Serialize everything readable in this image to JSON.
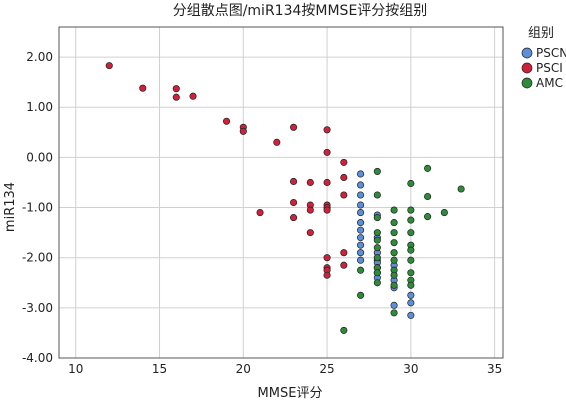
{
  "chart_data": {
    "type": "scatter",
    "title": "分组散点图/miR134按MMSE评分按组别",
    "xlabel": "MMSE评分",
    "ylabel": "miR134",
    "xlim": [
      9,
      35.5
    ],
    "ylim": [
      -4.0,
      2.6
    ],
    "x_ticks": [
      10,
      15,
      20,
      25,
      30,
      35
    ],
    "y_ticks": [
      -4.0,
      -3.0,
      -2.0,
      -1.0,
      0.0,
      1.0,
      2.0
    ],
    "y_tick_labels": [
      "-4.00",
      "-3.00",
      "-2.00",
      "-1.00",
      "0.00",
      "1.00",
      "2.00"
    ],
    "grid": true,
    "legend": {
      "title": "组别",
      "position": "right"
    },
    "series": [
      {
        "name": "PSCN",
        "color": "#5b8fd9",
        "points": [
          [
            27,
            -0.33
          ],
          [
            27,
            -0.55
          ],
          [
            27,
            -0.75
          ],
          [
            27,
            -0.95
          ],
          [
            27,
            -1.1
          ],
          [
            27,
            -1.3
          ],
          [
            27,
            -1.45
          ],
          [
            27,
            -1.6
          ],
          [
            27,
            -1.75
          ],
          [
            27,
            -1.9
          ],
          [
            27,
            -2.05
          ],
          [
            28,
            -1.15
          ],
          [
            28,
            -1.6
          ],
          [
            28,
            -1.9
          ],
          [
            28,
            -2.05
          ],
          [
            28,
            -2.1
          ],
          [
            28,
            -2.2
          ],
          [
            28,
            -2.3
          ],
          [
            28,
            -2.4
          ],
          [
            29,
            -2.15
          ],
          [
            29,
            -2.45
          ],
          [
            29,
            -2.6
          ],
          [
            29,
            -2.95
          ],
          [
            30,
            -2.75
          ],
          [
            30,
            -2.9
          ],
          [
            30,
            -3.15
          ]
        ]
      },
      {
        "name": "PSCI",
        "color": "#d0213c",
        "points": [
          [
            12,
            1.83
          ],
          [
            14,
            1.38
          ],
          [
            16,
            1.37
          ],
          [
            16,
            1.2
          ],
          [
            17,
            1.22
          ],
          [
            19,
            0.72
          ],
          [
            20,
            0.6
          ],
          [
            20,
            0.52
          ],
          [
            22,
            0.3
          ],
          [
            23,
            0.6
          ],
          [
            23,
            -0.48
          ],
          [
            23,
            -0.9
          ],
          [
            23,
            -1.2
          ],
          [
            24,
            -0.5
          ],
          [
            24,
            -0.95
          ],
          [
            24,
            -1.05
          ],
          [
            24,
            -1.5
          ],
          [
            21,
            -1.1
          ],
          [
            25,
            0.55
          ],
          [
            25,
            0.1
          ],
          [
            25,
            -0.5
          ],
          [
            25,
            -0.95
          ],
          [
            25,
            -1.0
          ],
          [
            25,
            -1.05
          ],
          [
            25,
            -2.0
          ],
          [
            25,
            -2.2
          ],
          [
            25,
            -2.25
          ],
          [
            25,
            -2.35
          ],
          [
            26,
            -0.1
          ],
          [
            26,
            -0.4
          ],
          [
            26,
            -0.75
          ],
          [
            26,
            -1.9
          ],
          [
            26,
            -2.15
          ]
        ]
      },
      {
        "name": "AMC",
        "color": "#2e8b3a",
        "points": [
          [
            26,
            -3.45
          ],
          [
            27,
            -2.75
          ],
          [
            27,
            -2.25
          ],
          [
            28,
            -0.28
          ],
          [
            28,
            -0.75
          ],
          [
            28,
            -1.2
          ],
          [
            28,
            -1.5
          ],
          [
            28,
            -1.65
          ],
          [
            28,
            -1.8
          ],
          [
            28,
            -2.0
          ],
          [
            28,
            -2.2
          ],
          [
            28,
            -2.3
          ],
          [
            28,
            -2.5
          ],
          [
            29,
            -1.05
          ],
          [
            29,
            -1.3
          ],
          [
            29,
            -1.5
          ],
          [
            29,
            -1.7
          ],
          [
            29,
            -1.9
          ],
          [
            29,
            -2.05
          ],
          [
            29,
            -2.25
          ],
          [
            29,
            -2.35
          ],
          [
            29,
            -2.55
          ],
          [
            29,
            -3.1
          ],
          [
            30,
            -0.52
          ],
          [
            30,
            -1.05
          ],
          [
            30,
            -1.25
          ],
          [
            30,
            -1.5
          ],
          [
            30,
            -1.75
          ],
          [
            30,
            -1.85
          ],
          [
            30,
            -2.05
          ],
          [
            30,
            -2.3
          ],
          [
            30,
            -2.45
          ],
          [
            30,
            -2.55
          ],
          [
            31,
            -0.22
          ],
          [
            31,
            -0.78
          ],
          [
            31,
            -1.18
          ],
          [
            32,
            -1.1
          ],
          [
            33,
            -0.63
          ]
        ]
      }
    ]
  }
}
